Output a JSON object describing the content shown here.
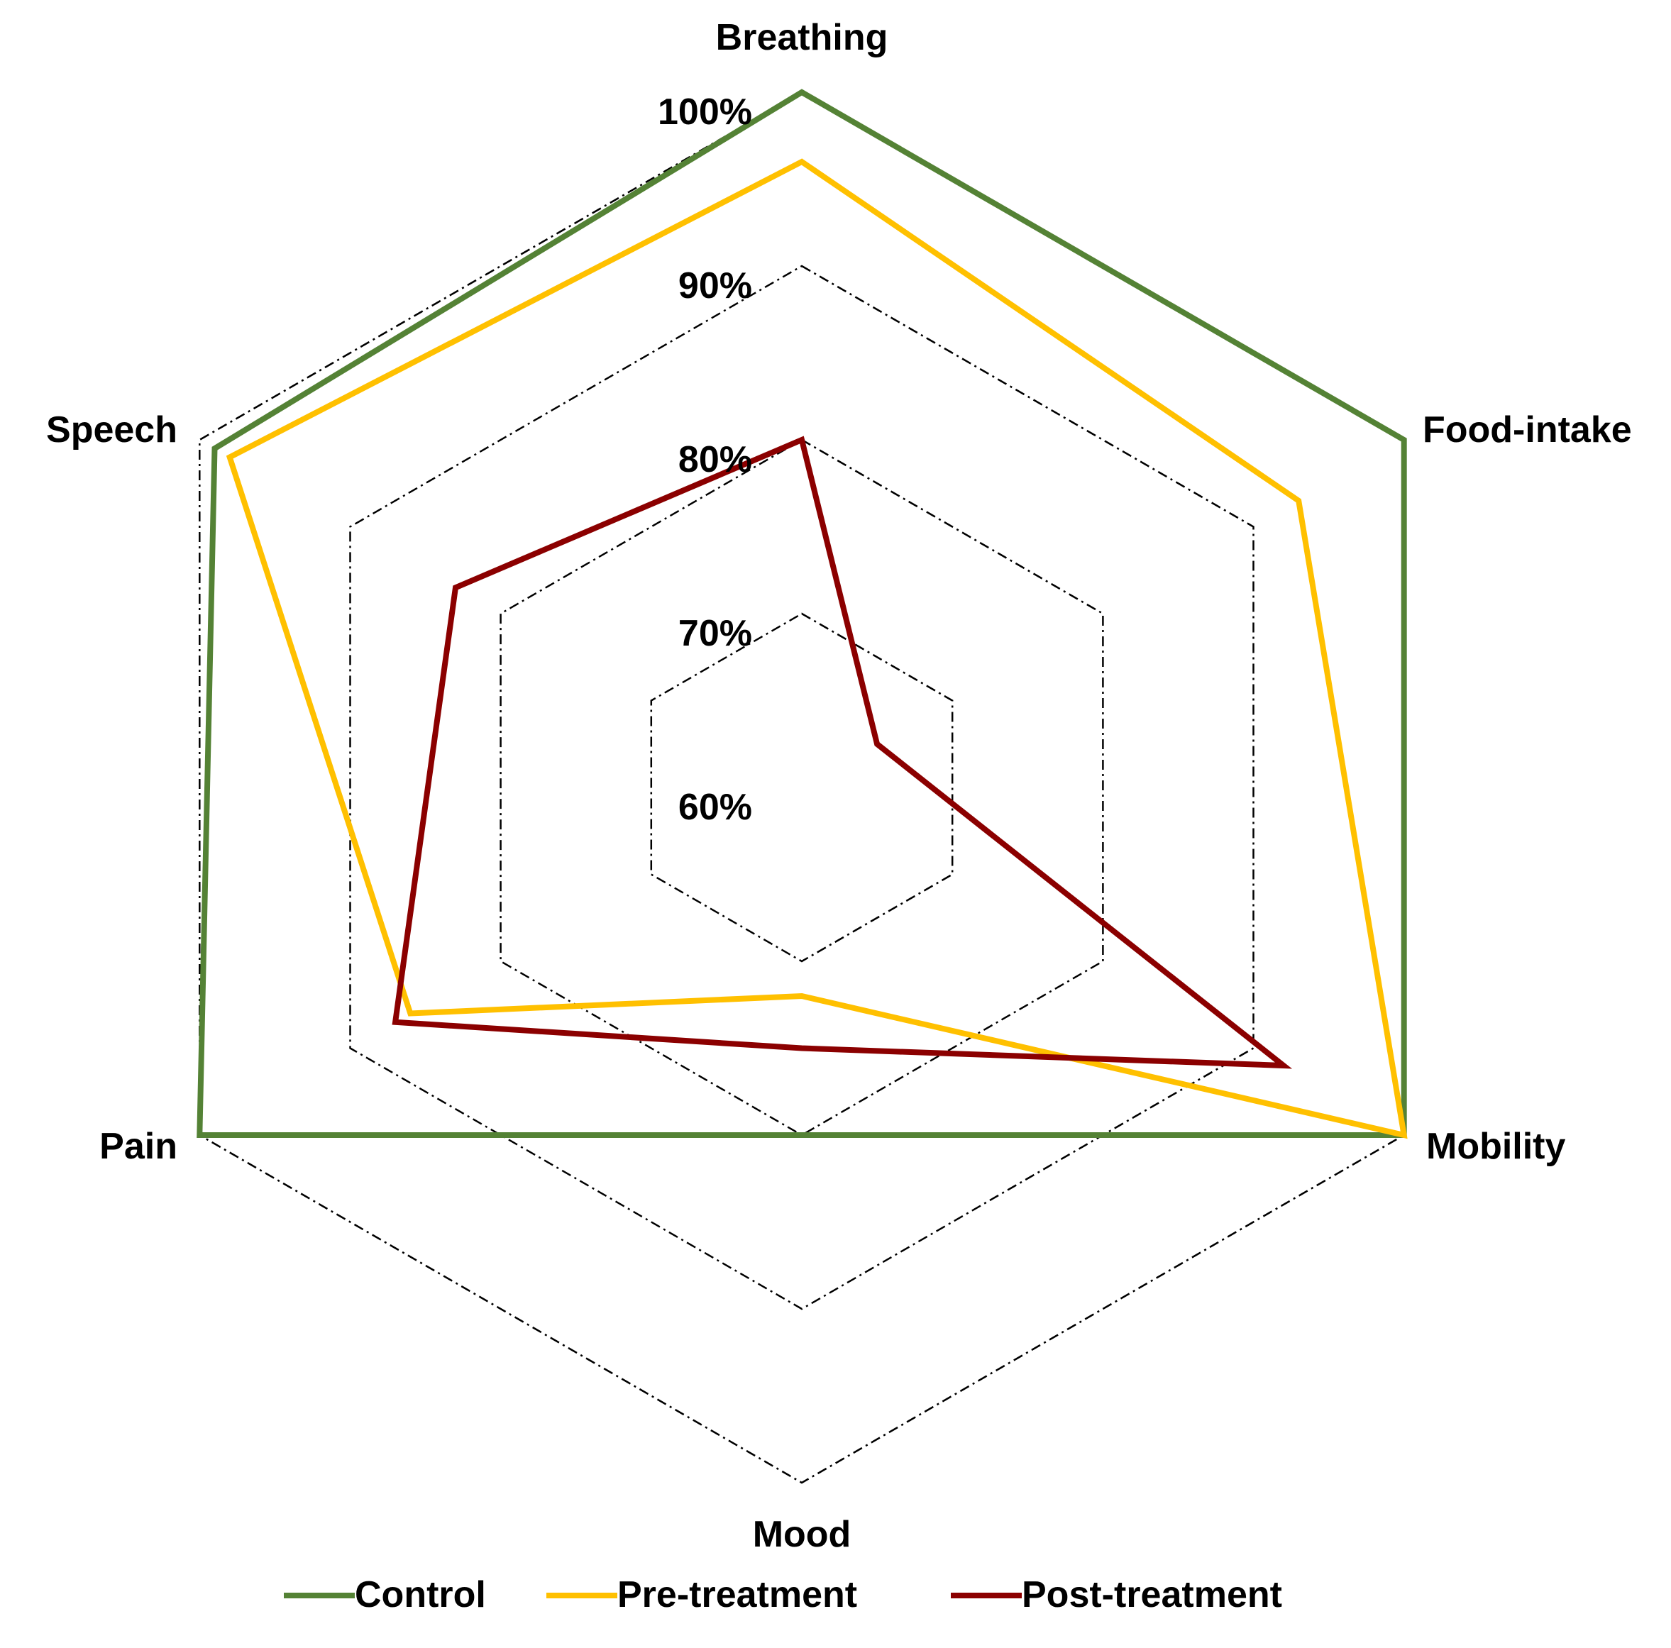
{
  "chart_data": {
    "type": "radar",
    "axes": [
      "Breathing",
      "Food-intake",
      "Mobility",
      "Mood",
      "Pain",
      "Speech"
    ],
    "rlim": [
      60,
      100
    ],
    "r_ticks": [
      60,
      70,
      80,
      90,
      100
    ],
    "r_tick_labels": [
      "60%",
      "70%",
      "80%",
      "90%",
      "100%"
    ],
    "grid": true,
    "grid_style": "dash-dot",
    "legend_position": "bottom",
    "series": [
      {
        "name": "Control",
        "color": "#548235",
        "values": [
          100,
          100,
          100,
          80,
          100,
          99
        ]
      },
      {
        "name": "Pre-treatment",
        "color": "#FFC000",
        "values": [
          96,
          93,
          100,
          72,
          86,
          98
        ]
      },
      {
        "name": "Post-treatment",
        "color": "#8B0000",
        "values": [
          80,
          65,
          92,
          75,
          87,
          83
        ]
      }
    ]
  }
}
